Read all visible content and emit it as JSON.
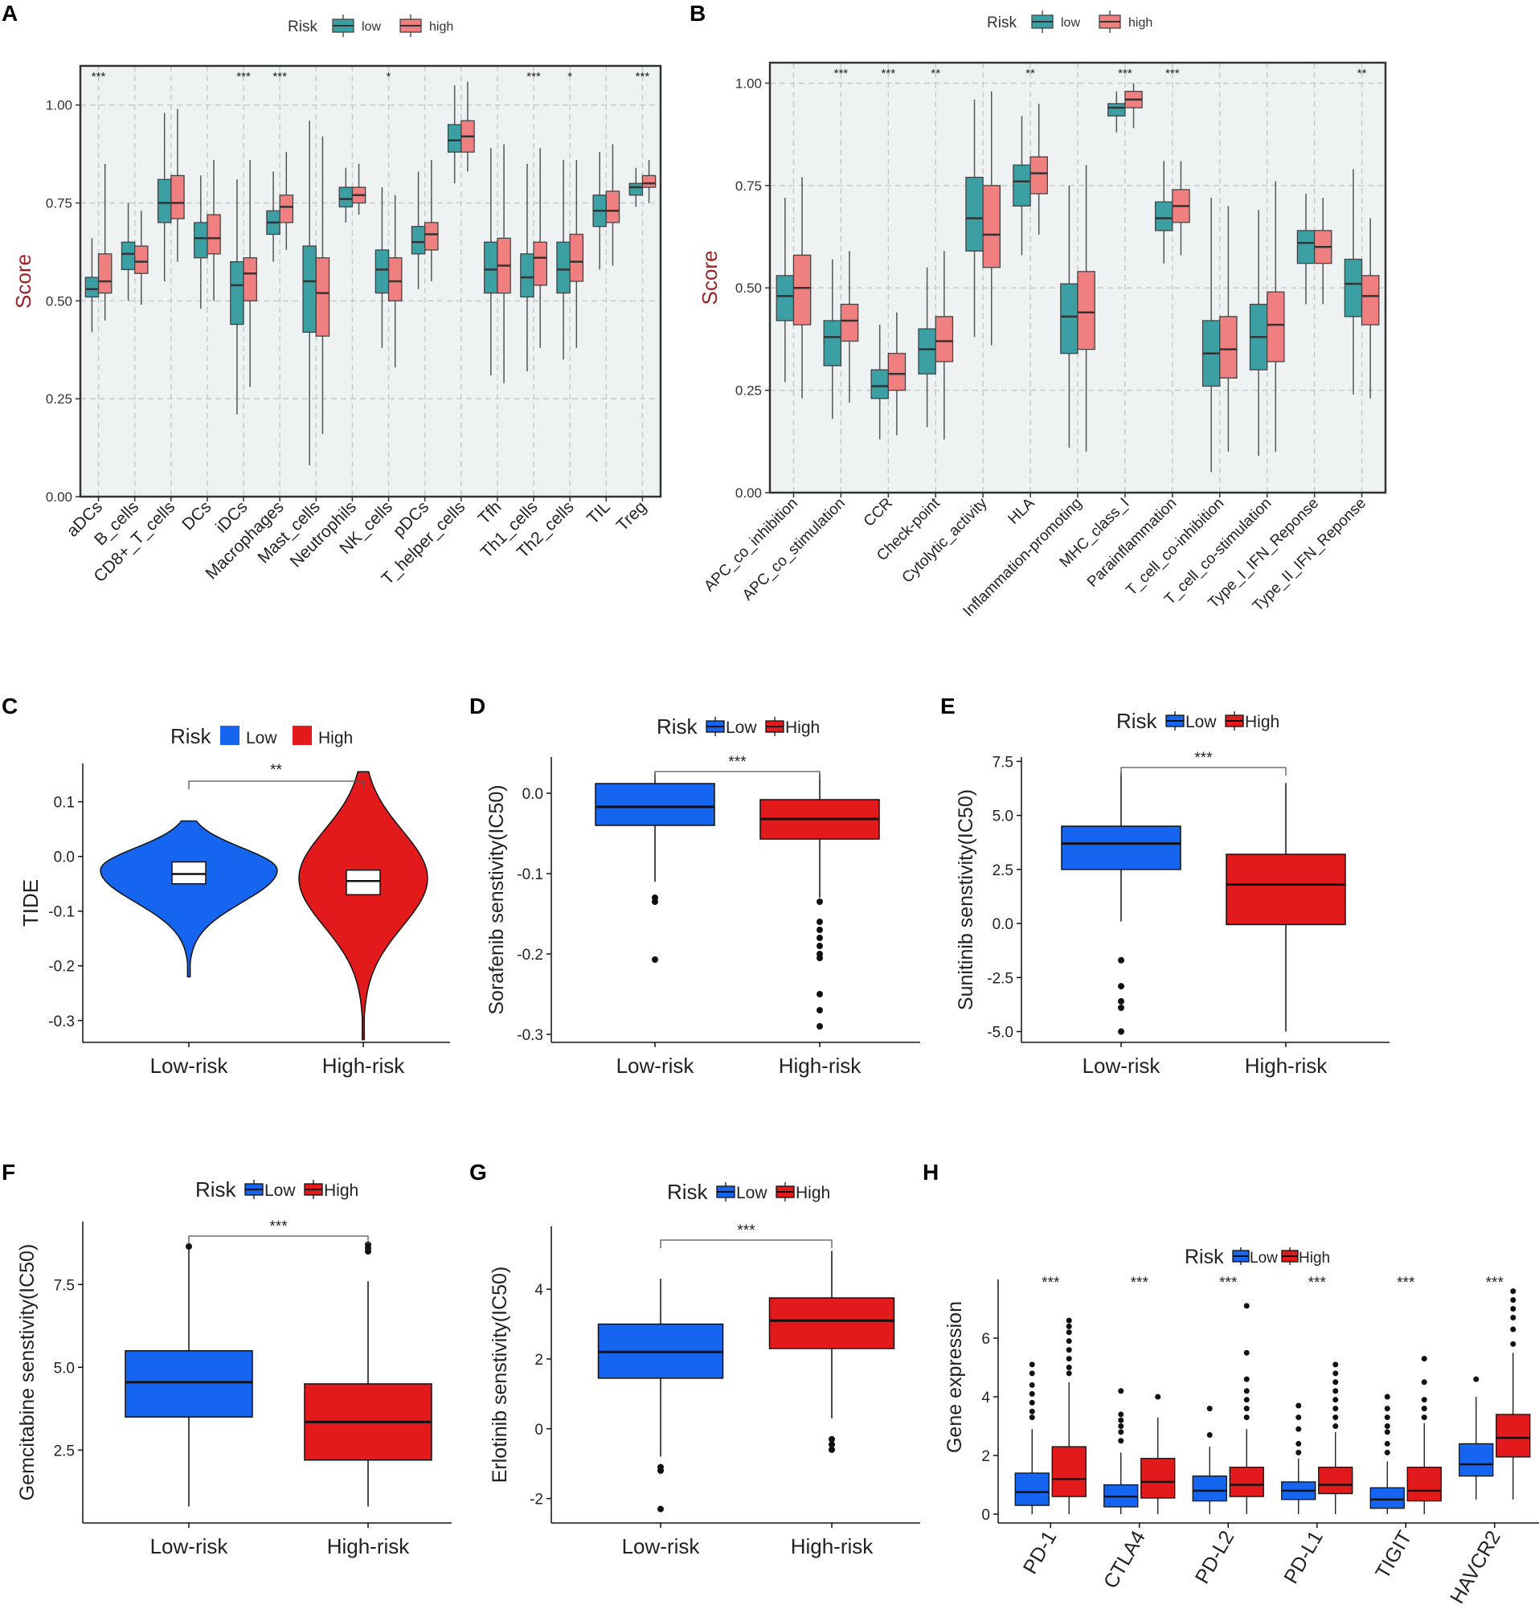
{
  "chart_data": [
    {
      "panel": "A",
      "type": "box",
      "legend_title": "Risk",
      "legend_labels": [
        "low",
        "high"
      ],
      "colors": {
        "low": "#3b9fa3",
        "high": "#f08080",
        "background": "#eef2f2"
      },
      "ylabel": "Score",
      "ylim": [
        0,
        1.1
      ],
      "yticks": [
        "0.00",
        "0.25",
        "0.50",
        "0.75",
        "1.00"
      ],
      "yticks_values": [
        0,
        0.25,
        0.5,
        0.75,
        1.0
      ],
      "categories": [
        "aDCs",
        "B_cells",
        "CD8+_T_cells",
        "DCs",
        "iDCs",
        "Macrophages",
        "Mast_cells",
        "Neutrophils",
        "NK_cells",
        "pDCs",
        "T_helper_cells",
        "Tfh",
        "Th1_cells",
        "Th2_cells",
        "TIL",
        "Treg"
      ],
      "significance": [
        "***",
        "",
        "",
        "",
        "***",
        "***",
        "",
        "",
        "*",
        "",
        "",
        "",
        "***",
        "*",
        "",
        "***"
      ],
      "series": [
        {
          "name": "low",
          "boxes": [
            [
              0.42,
              0.51,
              0.53,
              0.56,
              0.66
            ],
            [
              0.5,
              0.58,
              0.62,
              0.65,
              0.75
            ],
            [
              0.55,
              0.7,
              0.75,
              0.81,
              0.98
            ],
            [
              0.48,
              0.61,
              0.66,
              0.7,
              0.82
            ],
            [
              0.21,
              0.44,
              0.54,
              0.6,
              0.81
            ],
            [
              0.6,
              0.67,
              0.7,
              0.73,
              0.83
            ],
            [
              0.08,
              0.42,
              0.55,
              0.64,
              0.96
            ],
            [
              0.7,
              0.74,
              0.76,
              0.79,
              0.84
            ],
            [
              0.38,
              0.52,
              0.58,
              0.63,
              0.79
            ],
            [
              0.53,
              0.62,
              0.65,
              0.69,
              0.83
            ],
            [
              0.8,
              0.88,
              0.91,
              0.95,
              1.05
            ],
            [
              0.31,
              0.52,
              0.58,
              0.65,
              0.89
            ],
            [
              0.32,
              0.51,
              0.56,
              0.62,
              0.85
            ],
            [
              0.35,
              0.52,
              0.58,
              0.65,
              0.86
            ],
            [
              0.58,
              0.69,
              0.73,
              0.77,
              0.88
            ],
            [
              0.74,
              0.77,
              0.79,
              0.8,
              0.84
            ]
          ]
        },
        {
          "name": "high",
          "boxes": [
            [
              0.45,
              0.52,
              0.55,
              0.62,
              0.85
            ],
            [
              0.49,
              0.57,
              0.6,
              0.64,
              0.73
            ],
            [
              0.6,
              0.71,
              0.75,
              0.82,
              0.99
            ],
            [
              0.5,
              0.62,
              0.66,
              0.72,
              0.86
            ],
            [
              0.28,
              0.5,
              0.57,
              0.61,
              0.86
            ],
            [
              0.63,
              0.7,
              0.74,
              0.77,
              0.88
            ],
            [
              0.16,
              0.41,
              0.52,
              0.61,
              0.92
            ],
            [
              0.72,
              0.75,
              0.77,
              0.79,
              0.85
            ],
            [
              0.33,
              0.5,
              0.55,
              0.61,
              0.77
            ],
            [
              0.55,
              0.63,
              0.67,
              0.7,
              0.86
            ],
            [
              0.83,
              0.88,
              0.92,
              0.96,
              1.06
            ],
            [
              0.29,
              0.52,
              0.59,
              0.66,
              0.9
            ],
            [
              0.38,
              0.54,
              0.61,
              0.65,
              0.89
            ],
            [
              0.38,
              0.55,
              0.6,
              0.67,
              0.86
            ],
            [
              0.59,
              0.7,
              0.73,
              0.78,
              0.9
            ],
            [
              0.75,
              0.79,
              0.8,
              0.82,
              0.86
            ]
          ]
        }
      ]
    },
    {
      "panel": "B",
      "type": "box",
      "legend_title": "Risk",
      "legend_labels": [
        "low",
        "high"
      ],
      "colors": {
        "low": "#3b9fa3",
        "high": "#f08080",
        "background": "#eef2f2"
      },
      "ylabel": "Score",
      "ylim": [
        0,
        1.05
      ],
      "yticks": [
        "0.00",
        "0.25",
        "0.50",
        "0.75",
        "1.00"
      ],
      "yticks_values": [
        0,
        0.25,
        0.5,
        0.75,
        1.0
      ],
      "categories": [
        "APC_co_inhibition",
        "APC_co_stimulation",
        "CCR",
        "Check-point",
        "Cytolytic_activity",
        "HLA",
        "Inflammation-promoting",
        "MHC_class_I",
        "Parainflammation",
        "T_cell_co-inhibition",
        "T_cell_co-stimulation",
        "Type_I_IFN_Reponse",
        "Type_II_IFN_Reponse"
      ],
      "significance": [
        "",
        "***",
        "***",
        "**",
        "",
        "**",
        "",
        "***",
        "***",
        "",
        "",
        "",
        "**"
      ],
      "series": [
        {
          "name": "low",
          "boxes": [
            [
              0.27,
              0.42,
              0.48,
              0.53,
              0.72
            ],
            [
              0.18,
              0.31,
              0.38,
              0.42,
              0.57
            ],
            [
              0.13,
              0.23,
              0.26,
              0.3,
              0.41
            ],
            [
              0.16,
              0.29,
              0.35,
              0.4,
              0.55
            ],
            [
              0.38,
              0.59,
              0.67,
              0.77,
              0.96
            ],
            [
              0.58,
              0.7,
              0.76,
              0.8,
              0.92
            ],
            [
              0.11,
              0.34,
              0.43,
              0.51,
              0.75
            ],
            [
              0.88,
              0.92,
              0.94,
              0.95,
              0.98
            ],
            [
              0.56,
              0.64,
              0.67,
              0.71,
              0.81
            ],
            [
              0.05,
              0.26,
              0.34,
              0.42,
              0.72
            ],
            [
              0.09,
              0.3,
              0.38,
              0.46,
              0.69
            ],
            [
              0.46,
              0.56,
              0.61,
              0.64,
              0.73
            ],
            [
              0.24,
              0.43,
              0.51,
              0.57,
              0.79
            ]
          ]
        },
        {
          "name": "high",
          "boxes": [
            [
              0.23,
              0.41,
              0.5,
              0.58,
              0.77
            ],
            [
              0.22,
              0.37,
              0.42,
              0.46,
              0.59
            ],
            [
              0.14,
              0.25,
              0.29,
              0.34,
              0.44
            ],
            [
              0.13,
              0.32,
              0.37,
              0.43,
              0.59
            ],
            [
              0.36,
              0.55,
              0.63,
              0.75,
              0.98
            ],
            [
              0.63,
              0.73,
              0.78,
              0.82,
              0.95
            ],
            [
              0.1,
              0.35,
              0.44,
              0.54,
              0.8
            ],
            [
              0.89,
              0.94,
              0.96,
              0.98,
              1.0
            ],
            [
              0.58,
              0.66,
              0.7,
              0.74,
              0.81
            ],
            [
              0.1,
              0.28,
              0.35,
              0.43,
              0.7
            ],
            [
              0.1,
              0.32,
              0.41,
              0.49,
              0.76
            ],
            [
              0.46,
              0.56,
              0.6,
              0.64,
              0.72
            ],
            [
              0.23,
              0.41,
              0.48,
              0.53,
              0.67
            ]
          ]
        }
      ]
    },
    {
      "panel": "C",
      "type": "violin",
      "legend_title": "Risk",
      "legend_labels": [
        "Low",
        "High"
      ],
      "colors": {
        "Low": "#1565f0",
        "High": "#e31a1c"
      },
      "ylabel": "TIDE",
      "ylim": [
        -0.34,
        0.17
      ],
      "yticks": [
        "0.1",
        "0.0",
        "-0.1",
        "-0.2",
        "-0.3"
      ],
      "yticks_values": [
        0.1,
        0.0,
        -0.1,
        -0.2,
        -0.3
      ],
      "categories": [
        "Low-risk",
        "High-risk"
      ],
      "significance": "**",
      "violins": [
        {
          "min": -0.22,
          "max": 0.065,
          "peak": -0.025,
          "q1": -0.05,
          "median": -0.032,
          "q3": -0.01
        },
        {
          "min": -0.335,
          "max": 0.155,
          "peak": -0.04,
          "q1": -0.07,
          "median": -0.045,
          "q3": -0.025
        }
      ]
    },
    {
      "panel": "D",
      "type": "box",
      "legend_title": "Risk",
      "legend_labels": [
        "Low",
        "High"
      ],
      "colors": {
        "Low": "#1565f0",
        "High": "#e31a1c"
      },
      "ylabel": "Sorafenib senstivity(IC50)",
      "ylim": [
        -0.31,
        0.045
      ],
      "yticks": [
        "0.0",
        "-0.1",
        "-0.2",
        "-0.3"
      ],
      "yticks_values": [
        0.0,
        -0.1,
        -0.2,
        -0.3
      ],
      "categories": [
        "Low-risk",
        "High-risk"
      ],
      "significance": "***",
      "boxes": [
        [
          -0.11,
          -0.04,
          -0.017,
          0.012,
          0.025
        ],
        [
          -0.13,
          -0.057,
          -0.032,
          -0.008,
          0.025
        ]
      ],
      "outliers": [
        [
          -0.13,
          -0.135,
          -0.207
        ],
        [
          -0.135,
          -0.16,
          -0.17,
          -0.18,
          -0.19,
          -0.2,
          -0.205,
          -0.25,
          -0.27,
          -0.29
        ]
      ]
    },
    {
      "panel": "E",
      "type": "box",
      "legend_title": "Risk",
      "legend_labels": [
        "Low",
        "High"
      ],
      "colors": {
        "Low": "#1565f0",
        "High": "#e31a1c"
      },
      "ylabel": "Sunitinib senstivity(IC50)",
      "ylim": [
        -5.5,
        7.7
      ],
      "yticks": [
        "7.5",
        "5.0",
        "2.5",
        "0.0",
        "-2.5",
        "-5.0"
      ],
      "yticks_values": [
        7.5,
        5.0,
        2.5,
        0.0,
        -2.5,
        -5.0
      ],
      "categories": [
        "Low-risk",
        "High-risk"
      ],
      "significance": "***",
      "boxes": [
        [
          0.1,
          2.5,
          3.7,
          4.5,
          7.0
        ],
        [
          -5.0,
          -0.05,
          1.8,
          3.2,
          6.5
        ]
      ],
      "outliers": [
        [
          -1.7,
          -2.9,
          -3.6,
          -3.9,
          -5.0
        ],
        []
      ]
    },
    {
      "panel": "F",
      "type": "box",
      "legend_title": "Risk",
      "legend_labels": [
        "Low",
        "High"
      ],
      "colors": {
        "Low": "#1565f0",
        "High": "#e31a1c"
      },
      "ylabel": "Gemcitabine senstivity(IC50)",
      "ylim": [
        0.3,
        9.4
      ],
      "yticks": [
        "7.5",
        "5.0",
        "2.5"
      ],
      "yticks_values": [
        7.5,
        5.0,
        2.5
      ],
      "categories": [
        "Low-risk",
        "High-risk"
      ],
      "significance": "***",
      "boxes": [
        [
          0.8,
          3.5,
          4.55,
          5.5,
          8.6
        ],
        [
          0.8,
          2.2,
          3.35,
          4.5,
          7.6
        ]
      ],
      "outliers": [
        [
          8.65
        ],
        [
          8.5,
          8.6,
          8.7
        ]
      ]
    },
    {
      "panel": "G",
      "type": "box",
      "legend_title": "Risk",
      "legend_labels": [
        "Low",
        "High"
      ],
      "colors": {
        "Low": "#1565f0",
        "High": "#e31a1c"
      },
      "ylabel": "Erlotinib senstivity(IC50)",
      "ylim": [
        -2.7,
        5.8
      ],
      "yticks": [
        "4",
        "2",
        "0",
        "-2"
      ],
      "yticks_values": [
        4,
        2,
        0,
        -2
      ],
      "categories": [
        "Low-risk",
        "High-risk"
      ],
      "significance": "***",
      "boxes": [
        [
          -0.8,
          1.45,
          2.2,
          3.0,
          4.3
        ],
        [
          0.3,
          2.3,
          3.1,
          3.75,
          5.1
        ]
      ],
      "outliers": [
        [
          -1.1,
          -1.2,
          -2.3
        ],
        [
          -0.3,
          -0.45,
          -0.6
        ]
      ]
    },
    {
      "panel": "H",
      "type": "box",
      "legend_title": "Risk",
      "legend_labels": [
        "Low",
        "High"
      ],
      "colors": {
        "Low": "#1565f0",
        "High": "#e31a1c"
      },
      "ylabel": "Gene expression",
      "ylim": [
        -0.3,
        8.0
      ],
      "yticks": [
        "0",
        "2",
        "4",
        "6"
      ],
      "yticks_values": [
        0,
        2,
        4,
        6
      ],
      "categories": [
        "PD-1",
        "CTLA4",
        "PD-L2",
        "PD-L1",
        "TIGIT",
        "HAVCR2"
      ],
      "significance": [
        "***",
        "***",
        "***",
        "***",
        "***",
        "***"
      ],
      "series": [
        {
          "name": "Low",
          "boxes": [
            [
              0,
              0.3,
              0.75,
              1.4,
              2.9
            ],
            [
              0,
              0.25,
              0.6,
              1.0,
              2.1
            ],
            [
              0,
              0.45,
              0.8,
              1.3,
              2.3
            ],
            [
              0,
              0.5,
              0.8,
              1.1,
              1.9
            ],
            [
              0,
              0.2,
              0.5,
              0.9,
              1.8
            ],
            [
              0.5,
              1.3,
              1.7,
              2.4,
              4.0
            ]
          ],
          "outliers": [
            [
              3.3,
              3.5,
              3.8,
              4.1,
              4.4,
              4.8,
              5.1
            ],
            [
              2.5,
              2.8,
              3.0,
              3.2,
              3.4,
              4.2
            ],
            [
              2.7,
              3.6
            ],
            [
              2.1,
              2.4,
              2.9,
              3.3,
              3.7
            ],
            [
              2.1,
              2.4,
              2.8,
              3.0,
              3.3,
              3.6,
              4.0
            ],
            [
              4.6
            ]
          ]
        },
        {
          "name": "High",
          "boxes": [
            [
              0,
              0.6,
              1.2,
              2.3,
              4.5
            ],
            [
              0,
              0.55,
              1.1,
              1.9,
              3.3
            ],
            [
              0,
              0.6,
              1.0,
              1.6,
              2.9
            ],
            [
              0,
              0.7,
              1.0,
              1.6,
              2.8
            ],
            [
              0,
              0.45,
              0.8,
              1.6,
              3.1
            ],
            [
              0.5,
              1.95,
              2.6,
              3.4,
              5.5
            ]
          ],
          "outliers": [
            [
              4.8,
              5.0,
              5.3,
              5.6,
              5.9,
              6.2,
              6.4,
              6.6
            ],
            [
              4.0
            ],
            [
              3.3,
              3.6,
              3.9,
              4.2,
              4.6,
              5.5,
              7.1
            ],
            [
              3.0,
              3.3,
              3.6,
              3.9,
              4.2,
              4.5,
              4.8,
              5.1
            ],
            [
              3.3,
              3.6,
              3.9,
              4.5,
              5.3
            ],
            [
              5.8,
              6.3,
              6.7,
              7.0,
              7.3,
              7.6
            ]
          ]
        }
      ]
    }
  ]
}
